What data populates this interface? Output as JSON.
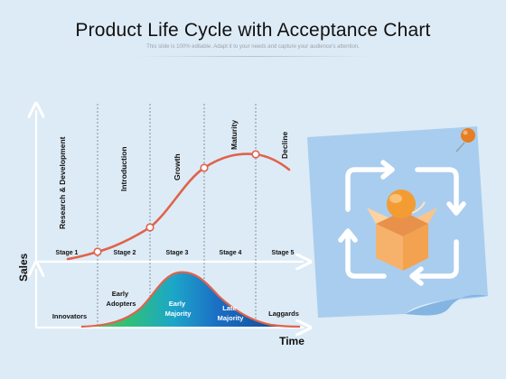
{
  "header": {
    "title": "Product Life Cycle with Acceptance Chart",
    "subtitle": "This slide is 100% editable. Adapt it to your needs and capture your audience's attention."
  },
  "chart": {
    "y_axis_label": "Sales",
    "x_axis_label": "Time",
    "phases": [
      "Research & Development",
      "Introduction",
      "Growth",
      "Maturity",
      "Decline"
    ],
    "stages": [
      "Stage 1",
      "Stage 2",
      "Stage 3",
      "Stage 4",
      "Stage 5"
    ],
    "adopters": [
      "Innovators",
      "Early Adopters",
      "Early Majority",
      "Late Majority",
      "Laggards"
    ]
  },
  "colors": {
    "background": "#ddebf6",
    "curve": "#e0634b",
    "axis": "#ffffff",
    "note": "#a9cdef",
    "icon_box": "#f6b26b",
    "icon_ball": "#f39c34",
    "pin": "#e67e22"
  },
  "icons": [
    "sticky-note",
    "pushpin-icon",
    "open-box-icon",
    "cycle-arrows-icon"
  ]
}
